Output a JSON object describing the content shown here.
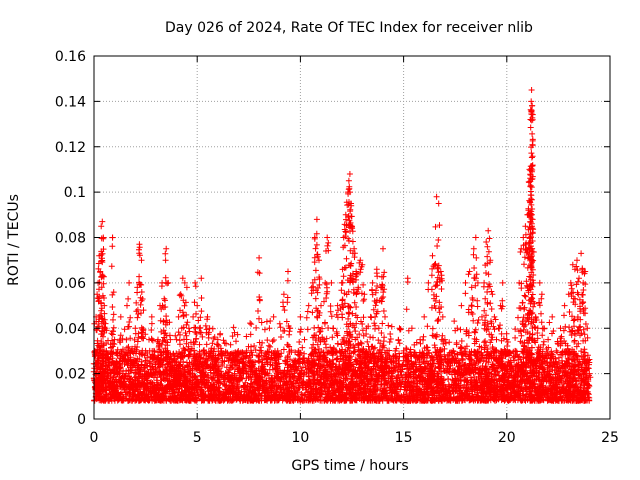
{
  "chart_data": {
    "type": "scatter",
    "title": "Day 026 of 2024, Rate Of TEC Index for receiver nlib",
    "xlabel": "GPS time / hours",
    "ylabel": "ROTI / TECUs",
    "xlim": [
      0,
      25
    ],
    "ylim": [
      0,
      0.16
    ],
    "xticks": [
      0,
      5,
      10,
      15,
      20,
      25
    ],
    "xtick_labels": [
      "0",
      "5",
      "10",
      "15",
      "20",
      "25"
    ],
    "yticks": [
      0,
      0.02,
      0.04,
      0.06,
      0.08,
      0.1,
      0.12,
      0.14,
      0.16
    ],
    "ytick_labels": [
      "0",
      "0.02",
      "0.04",
      "0.06",
      "0.08",
      "0.1",
      "0.12",
      "0.14",
      "0.16"
    ],
    "grid": true,
    "marker": "+",
    "marker_color": "#ff0000",
    "series": [
      {
        "name": "ROTI",
        "points": [
          [
            0.0,
            0.018
          ],
          [
            0.05,
            0.03
          ],
          [
            0.1,
            0.045
          ],
          [
            0.15,
            0.055
          ],
          [
            0.2,
            0.06
          ],
          [
            0.25,
            0.072
          ],
          [
            0.3,
            0.065
          ],
          [
            0.35,
            0.085
          ],
          [
            0.4,
            0.087
          ],
          [
            0.45,
            0.08
          ],
          [
            0.5,
            0.05
          ],
          [
            0.55,
            0.04
          ],
          [
            0.6,
            0.03
          ],
          [
            0.7,
            0.025
          ],
          [
            0.8,
            0.02
          ],
          [
            0.9,
            0.08
          ],
          [
            1.0,
            0.035
          ],
          [
            1.1,
            0.015
          ],
          [
            1.2,
            0.022
          ],
          [
            1.3,
            0.045
          ],
          [
            1.4,
            0.03
          ],
          [
            1.5,
            0.018
          ],
          [
            1.6,
            0.05
          ],
          [
            1.7,
            0.06
          ],
          [
            1.8,
            0.03
          ],
          [
            1.9,
            0.025
          ],
          [
            2.0,
            0.04
          ],
          [
            2.1,
            0.058
          ],
          [
            2.2,
            0.077
          ],
          [
            2.3,
            0.07
          ],
          [
            2.4,
            0.048
          ],
          [
            2.5,
            0.03
          ],
          [
            2.6,
            0.02
          ],
          [
            2.7,
            0.03
          ],
          [
            2.8,
            0.045
          ],
          [
            2.9,
            0.03
          ],
          [
            3.0,
            0.025
          ],
          [
            3.1,
            0.035
          ],
          [
            3.2,
            0.05
          ],
          [
            3.3,
            0.06
          ],
          [
            3.4,
            0.053
          ],
          [
            3.5,
            0.075
          ],
          [
            3.6,
            0.06
          ],
          [
            3.7,
            0.035
          ],
          [
            3.8,
            0.025
          ],
          [
            3.9,
            0.02
          ],
          [
            4.0,
            0.035
          ],
          [
            4.1,
            0.045
          ],
          [
            4.2,
            0.055
          ],
          [
            4.3,
            0.062
          ],
          [
            4.4,
            0.06
          ],
          [
            4.5,
            0.058
          ],
          [
            4.6,
            0.04
          ],
          [
            4.7,
            0.03
          ],
          [
            4.8,
            0.045
          ],
          [
            4.9,
            0.06
          ],
          [
            5.0,
            0.05
          ],
          [
            5.1,
            0.04
          ],
          [
            5.2,
            0.062
          ],
          [
            5.3,
            0.03
          ],
          [
            5.4,
            0.025
          ],
          [
            5.5,
            0.045
          ],
          [
            5.6,
            0.04
          ],
          [
            5.7,
            0.03
          ],
          [
            5.8,
            0.02
          ],
          [
            5.9,
            0.025
          ],
          [
            6.0,
            0.035
          ],
          [
            6.2,
            0.025
          ],
          [
            6.4,
            0.02
          ],
          [
            6.6,
            0.018
          ],
          [
            6.8,
            0.02
          ],
          [
            7.0,
            0.022
          ],
          [
            7.2,
            0.025
          ],
          [
            7.4,
            0.03
          ],
          [
            7.6,
            0.03
          ],
          [
            7.8,
            0.025
          ],
          [
            8.0,
            0.071
          ],
          [
            8.1,
            0.03
          ],
          [
            8.3,
            0.02
          ],
          [
            8.5,
            0.04
          ],
          [
            8.7,
            0.045
          ],
          [
            8.9,
            0.03
          ],
          [
            9.0,
            0.042
          ],
          [
            9.2,
            0.055
          ],
          [
            9.4,
            0.065
          ],
          [
            9.5,
            0.04
          ],
          [
            9.7,
            0.025
          ],
          [
            9.9,
            0.03
          ],
          [
            10.0,
            0.045
          ],
          [
            10.2,
            0.035
          ],
          [
            10.4,
            0.05
          ],
          [
            10.6,
            0.06
          ],
          [
            10.7,
            0.08
          ],
          [
            10.8,
            0.088
          ],
          [
            10.9,
            0.07
          ],
          [
            11.0,
            0.05
          ],
          [
            11.1,
            0.035
          ],
          [
            11.2,
            0.06
          ],
          [
            11.3,
            0.08
          ],
          [
            11.5,
            0.06
          ],
          [
            11.6,
            0.04
          ],
          [
            11.8,
            0.05
          ],
          [
            11.9,
            0.03
          ],
          [
            12.0,
            0.06
          ],
          [
            12.1,
            0.08
          ],
          [
            12.2,
            0.09
          ],
          [
            12.3,
            0.1
          ],
          [
            12.35,
            0.105
          ],
          [
            12.4,
            0.108
          ],
          [
            12.45,
            0.095
          ],
          [
            12.5,
            0.085
          ],
          [
            12.6,
            0.075
          ],
          [
            12.7,
            0.065
          ],
          [
            12.8,
            0.058
          ],
          [
            12.9,
            0.07
          ],
          [
            13.0,
            0.068
          ],
          [
            13.1,
            0.055
          ],
          [
            13.2,
            0.04
          ],
          [
            13.3,
            0.032
          ],
          [
            13.4,
            0.045
          ],
          [
            13.5,
            0.06
          ],
          [
            13.6,
            0.052
          ],
          [
            13.7,
            0.066
          ],
          [
            13.8,
            0.04
          ],
          [
            13.9,
            0.058
          ],
          [
            14.0,
            0.075
          ],
          [
            14.1,
            0.045
          ],
          [
            14.2,
            0.03
          ],
          [
            14.4,
            0.025
          ],
          [
            14.6,
            0.03
          ],
          [
            14.8,
            0.04
          ],
          [
            15.0,
            0.03
          ],
          [
            15.2,
            0.062
          ],
          [
            15.4,
            0.04
          ],
          [
            15.6,
            0.025
          ],
          [
            15.8,
            0.035
          ],
          [
            16.0,
            0.045
          ],
          [
            16.2,
            0.06
          ],
          [
            16.4,
            0.072
          ],
          [
            16.5,
            0.068
          ],
          [
            16.6,
            0.098
          ],
          [
            16.7,
            0.095
          ],
          [
            16.8,
            0.065
          ],
          [
            16.9,
            0.045
          ],
          [
            17.0,
            0.035
          ],
          [
            17.2,
            0.025
          ],
          [
            17.4,
            0.03
          ],
          [
            17.6,
            0.04
          ],
          [
            17.8,
            0.05
          ],
          [
            18.0,
            0.06
          ],
          [
            18.2,
            0.065
          ],
          [
            18.3,
            0.058
          ],
          [
            18.4,
            0.075
          ],
          [
            18.5,
            0.08
          ],
          [
            18.6,
            0.06
          ],
          [
            18.8,
            0.045
          ],
          [
            18.9,
            0.06
          ],
          [
            19.0,
            0.078
          ],
          [
            19.1,
            0.083
          ],
          [
            19.2,
            0.07
          ],
          [
            19.3,
            0.055
          ],
          [
            19.4,
            0.045
          ],
          [
            19.5,
            0.035
          ],
          [
            19.6,
            0.04
          ],
          [
            19.7,
            0.05
          ],
          [
            19.8,
            0.06
          ],
          [
            20.0,
            0.035
          ],
          [
            20.2,
            0.025
          ],
          [
            20.4,
            0.03
          ],
          [
            20.6,
            0.06
          ],
          [
            20.7,
            0.075
          ],
          [
            20.8,
            0.08
          ],
          [
            20.9,
            0.085
          ],
          [
            21.0,
            0.09
          ],
          [
            21.05,
            0.092
          ],
          [
            21.1,
            0.11
          ],
          [
            21.15,
            0.132
          ],
          [
            21.18,
            0.14
          ],
          [
            21.2,
            0.145
          ],
          [
            21.22,
            0.138
          ],
          [
            21.25,
            0.088
          ],
          [
            21.3,
            0.06
          ],
          [
            21.4,
            0.045
          ],
          [
            21.5,
            0.04
          ],
          [
            21.6,
            0.06
          ],
          [
            21.7,
            0.055
          ],
          [
            21.8,
            0.04
          ],
          [
            22.0,
            0.035
          ],
          [
            22.2,
            0.045
          ],
          [
            22.4,
            0.03
          ],
          [
            22.6,
            0.04
          ],
          [
            22.8,
            0.05
          ],
          [
            23.0,
            0.055
          ],
          [
            23.1,
            0.06
          ],
          [
            23.2,
            0.068
          ],
          [
            23.3,
            0.066
          ],
          [
            23.4,
            0.07
          ],
          [
            23.5,
            0.062
          ],
          [
            23.6,
            0.073
          ],
          [
            23.7,
            0.06
          ],
          [
            23.8,
            0.065
          ],
          [
            23.9,
            0.04
          ],
          [
            24.0,
            0.02
          ]
        ],
        "baseline_band": [
          0.008,
          0.03
        ],
        "points_per_hour": 220
      }
    ]
  }
}
